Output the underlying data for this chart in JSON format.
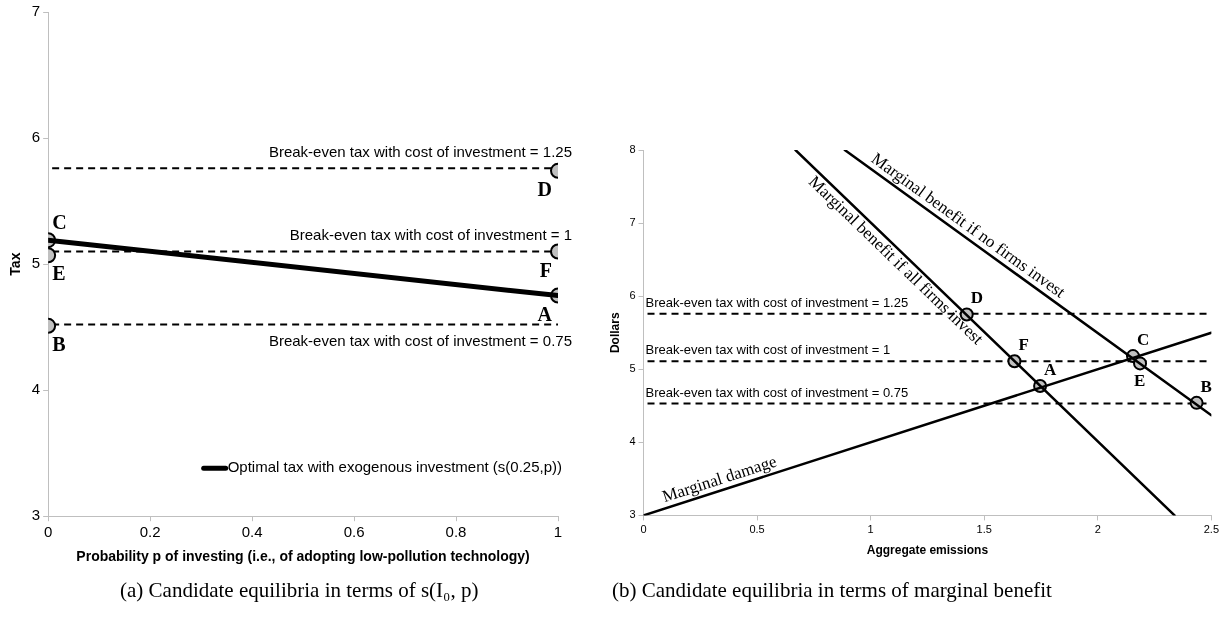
{
  "chart_data": [
    {
      "type": "line",
      "xlabel": "Probability p of investing (i.e., of adopting low-pollution technology)",
      "ylabel": "Tax",
      "xlim": [
        0,
        1
      ],
      "xticks": [
        0,
        0.2,
        0.4,
        0.6,
        0.8,
        1
      ],
      "ylim": [
        3,
        7
      ],
      "yticks": [
        3,
        4,
        5,
        6,
        7
      ],
      "grid": false,
      "legend": "bottom right",
      "series": [
        {
          "name": "Optimal tax with exogenous investment (s(0.25,p))",
          "color": "#000000",
          "x": [
            0,
            1
          ],
          "values": [
            5.19,
            4.75
          ],
          "marker": "none",
          "line_style": "solid"
        },
        {
          "type": "scatter",
          "color": "#c0c0c0",
          "marker": "circle",
          "x": [
            1,
            0,
            0,
            1,
            0,
            1
          ],
          "values": [
            4.75,
            4.51,
            5.19,
            5.74,
            5.07,
            5.1
          ]
        }
      ],
      "ref_lines": [
        {
          "axis": "y",
          "value": 5.76,
          "color": "#000000",
          "line_style": "dashed"
        },
        {
          "axis": "y",
          "value": 5.1,
          "color": "#000000",
          "line_style": "dashed"
        },
        {
          "axis": "y",
          "value": 4.52,
          "color": "#000000",
          "line_style": "dashed"
        }
      ],
      "annotations": [
        {
          "text": "Break-even tax with cost of investment = 1.25",
          "y": 5.76
        },
        {
          "text": "Break-even tax with cost of investment = 1",
          "y": 5.1
        },
        {
          "text": "Break-even tax with cost of investment = 0.75",
          "y": 4.52
        },
        {
          "text": "A",
          "x": 1,
          "y": 4.75
        },
        {
          "text": "B",
          "x": 0,
          "y": 4.51
        },
        {
          "text": "C",
          "x": 0,
          "y": 5.19
        },
        {
          "text": "D",
          "x": 1,
          "y": 5.74
        },
        {
          "text": "E",
          "x": 0,
          "y": 5.07
        },
        {
          "text": "F",
          "x": 1,
          "y": 5.1
        },
        "(a) Candidate equilibria in terms of s(I₀, p)"
      ]
    },
    {
      "type": "line",
      "xlabel": "Aggregate emissions",
      "ylabel": "Dollars",
      "xlim": [
        0,
        2.5
      ],
      "xticks": [
        0,
        0.5,
        1,
        1.5,
        2,
        2.5
      ],
      "ylim": [
        3,
        8
      ],
      "yticks": [
        3,
        4,
        5,
        6,
        7,
        8
      ],
      "grid": false,
      "series": [
        {
          "name": "Marginal damage",
          "color": "#000000",
          "x": [
            0,
            2.5
          ],
          "values": [
            3,
            5.5
          ],
          "marker": "none",
          "line_style": "solid"
        },
        {
          "name": "Marginal benefit if all firms invest",
          "color": "#000000",
          "x": [
            0.669,
            2.338
          ],
          "values": [
            8,
            3
          ],
          "marker": "none",
          "line_style": "solid"
        },
        {
          "name": "Marginal benefit if no firms invest",
          "color": "#000000",
          "x": [
            0.886,
            2.5
          ],
          "values": [
            8,
            4.37
          ],
          "marker": "none",
          "line_style": "solid"
        },
        {
          "type": "scatter",
          "color": "#c0c0c0",
          "marker": "circle",
          "x": [
            1.746,
            2.435,
            2.155,
            1.423,
            2.186,
            1.633
          ],
          "values": [
            4.77,
            4.54,
            5.18,
            5.75,
            5.08,
            5.11
          ]
        }
      ],
      "ref_lines": [
        {
          "axis": "y",
          "value": 5.76,
          "color": "#000000",
          "line_style": "dashed"
        },
        {
          "axis": "y",
          "value": 5.11,
          "color": "#000000",
          "line_style": "dashed"
        },
        {
          "axis": "y",
          "value": 4.53,
          "color": "#000000",
          "line_style": "dashed"
        }
      ],
      "annotations": [
        {
          "text": "Break-even tax with cost of investment = 1.25",
          "y": 5.76
        },
        {
          "text": "Break-even tax with cost of investment = 1",
          "y": 5.11
        },
        {
          "text": "Break-even tax with cost of investment = 0.75",
          "y": 4.53
        },
        {
          "text": "A",
          "x": 1.746,
          "y": 4.77
        },
        {
          "text": "B",
          "x": 2.435,
          "y": 4.54
        },
        {
          "text": "C",
          "x": 2.155,
          "y": 5.18
        },
        {
          "text": "D",
          "x": 1.423,
          "y": 5.75
        },
        {
          "text": "E",
          "x": 2.186,
          "y": 5.08
        },
        {
          "text": "F",
          "x": 1.633,
          "y": 5.11
        },
        "(b) Candidate equilibria in terms of marginal benefit"
      ]
    }
  ]
}
